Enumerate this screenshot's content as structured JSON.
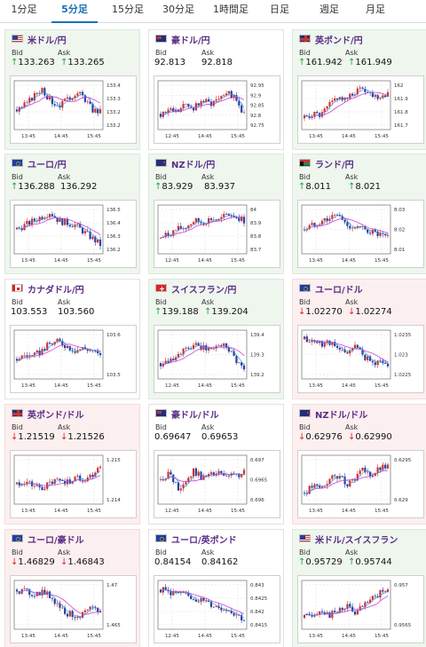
{
  "tabs": [
    "1分足",
    "5分足",
    "15分足",
    "30分足",
    "1時間足",
    "日足",
    "週足",
    "月足"
  ],
  "active_tab": "5分足",
  "labels": {
    "bid": "Bid",
    "ask": "Ask"
  },
  "colors": {
    "up_arrow": "#2a9d3a",
    "down_arrow": "#d22222",
    "title": "#5b2d86",
    "candle_up": "#d23030",
    "candle_down": "#2c3fa0",
    "ma_line": "#d040d0",
    "ma_line2": "#1a9be0"
  },
  "panels": [
    {
      "title": "米ドル/円",
      "bid": "133.263",
      "ask": "133.265",
      "dir": "up",
      "bid_arrow": "up",
      "ask_arrow": "up",
      "flag": "us-jp",
      "y_ticks": [
        "133.4",
        "133.3",
        "133.2",
        "133.2"
      ],
      "x_ticks": [
        "13:45",
        "14:45",
        "15:45"
      ]
    },
    {
      "title": "豪ドル/円",
      "bid": "92.813",
      "ask": "92.818",
      "dir": "flat",
      "bid_arrow": "none",
      "ask_arrow": "none",
      "flag": "au-jp",
      "y_ticks": [
        "92.95",
        "92.9",
        "92.85",
        "92.8",
        "92.75"
      ],
      "x_ticks": [
        "12:45",
        "14:45",
        "15:45"
      ]
    },
    {
      "title": "英ポンド/円",
      "bid": "161.942",
      "ask": "161.949",
      "dir": "up",
      "bid_arrow": "up",
      "ask_arrow": "up",
      "flag": "gb-jp",
      "y_ticks": [
        "162",
        "161.9",
        "161.8",
        "161.7"
      ],
      "x_ticks": [
        "13:45",
        "14:45",
        "15:45"
      ]
    },
    {
      "title": "ユーロ/円",
      "bid": "136.288",
      "ask": "136.292",
      "dir": "up",
      "bid_arrow": "up",
      "ask_arrow": "none",
      "flag": "eu-jp",
      "y_ticks": [
        "136.5",
        "136.4",
        "136.3",
        "136.2"
      ],
      "x_ticks": [
        "13:45",
        "14:45",
        "15:45"
      ]
    },
    {
      "title": "NZドル/円",
      "bid": "83.929",
      "ask": "83.937",
      "dir": "up",
      "bid_arrow": "up",
      "ask_arrow": "none",
      "flag": "nz-jp",
      "y_ticks": [
        "84",
        "83.9",
        "83.8",
        "83.7"
      ],
      "x_ticks": [
        "12:45",
        "14:45",
        "15:45"
      ]
    },
    {
      "title": "ランド/円",
      "bid": "8.011",
      "ask": "8.021",
      "dir": "up",
      "bid_arrow": "up",
      "ask_arrow": "up",
      "flag": "za-jp",
      "y_ticks": [
        "8.03",
        "8.02",
        "8.01"
      ],
      "x_ticks": [
        "13:45",
        "14:45",
        "15:45"
      ]
    },
    {
      "title": "カナダドル/円",
      "bid": "103.553",
      "ask": "103.560",
      "dir": "flat",
      "bid_arrow": "none",
      "ask_arrow": "none",
      "flag": "ca-jp",
      "y_ticks": [
        "103.6",
        "103.5"
      ],
      "x_ticks": [
        "13:45",
        "14:45",
        "15:45"
      ]
    },
    {
      "title": "スイスフラン/円",
      "bid": "139.188",
      "ask": "139.204",
      "dir": "up",
      "bid_arrow": "up",
      "ask_arrow": "up",
      "flag": "ch-jp",
      "y_ticks": [
        "139.4",
        "139.3",
        "139.2"
      ],
      "x_ticks": [
        "12:45",
        "14:45",
        "15:45"
      ]
    },
    {
      "title": "ユーロ/ドル",
      "bid": "1.02270",
      "ask": "1.02274",
      "dir": "down",
      "bid_arrow": "down",
      "ask_arrow": "down",
      "flag": "eu-us",
      "y_ticks": [
        "1.0235",
        "1.023",
        "1.0225"
      ],
      "x_ticks": [
        "13:45",
        "14:45",
        "15:45"
      ]
    },
    {
      "title": "英ポンド/ドル",
      "bid": "1.21519",
      "ask": "1.21526",
      "dir": "down",
      "bid_arrow": "down",
      "ask_arrow": "down",
      "flag": "gb-us",
      "y_ticks": [
        "1.215",
        "1.214"
      ],
      "x_ticks": [
        "13:45",
        "14:45",
        "15:45"
      ]
    },
    {
      "title": "豪ドル/ドル",
      "bid": "0.69647",
      "ask": "0.69653",
      "dir": "flat",
      "bid_arrow": "none",
      "ask_arrow": "none",
      "flag": "au-us",
      "y_ticks": [
        "0.697",
        "0.6965",
        "0.696"
      ],
      "x_ticks": [
        "12:45",
        "14:45",
        "15:45"
      ]
    },
    {
      "title": "NZドル/ドル",
      "bid": "0.62976",
      "ask": "0.62990",
      "dir": "down",
      "bid_arrow": "down",
      "ask_arrow": "down",
      "flag": "nz-us",
      "y_ticks": [
        "0.6295",
        "0.629"
      ],
      "x_ticks": [
        "13:45",
        "14:45",
        "15:45"
      ]
    },
    {
      "title": "ユーロ/豪ドル",
      "bid": "1.46829",
      "ask": "1.46843",
      "dir": "down",
      "bid_arrow": "down",
      "ask_arrow": "down",
      "flag": "eu-au",
      "y_ticks": [
        "1.47",
        "1.465"
      ],
      "x_ticks": [
        "13:45",
        "14:45",
        "15:45"
      ]
    },
    {
      "title": "ユーロ/英ポンド",
      "bid": "0.84154",
      "ask": "0.84162",
      "dir": "flat",
      "bid_arrow": "none",
      "ask_arrow": "none",
      "flag": "eu-gb",
      "y_ticks": [
        "0.843",
        "0.8425",
        "0.842",
        "0.8415"
      ],
      "x_ticks": [
        "12:45",
        "14:45",
        "15:45"
      ]
    },
    {
      "title": "米ドル/スイスフラン",
      "bid": "0.95729",
      "ask": "0.95744",
      "dir": "up",
      "bid_arrow": "up",
      "ask_arrow": "up",
      "flag": "us-ch",
      "y_ticks": [
        "0.957",
        "0.9565"
      ],
      "x_ticks": [
        "13:45",
        "14:45",
        "15:45"
      ]
    }
  ]
}
